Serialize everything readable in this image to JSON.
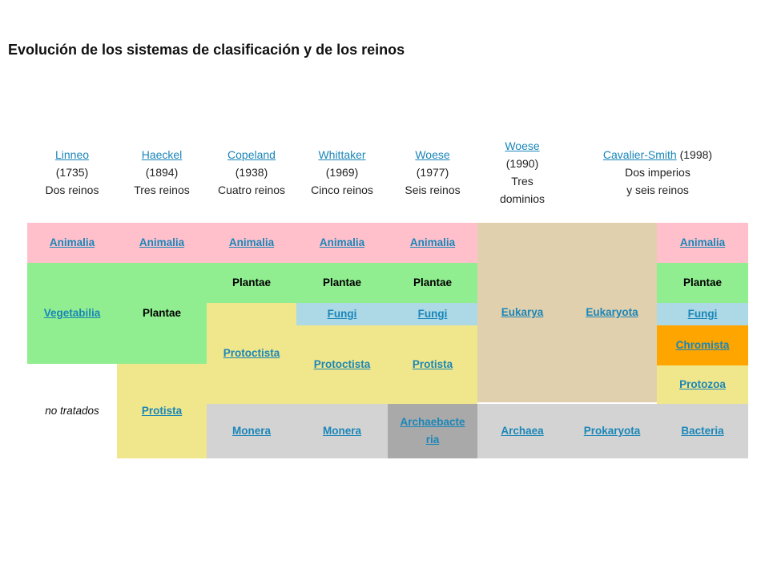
{
  "title": "Evolución de los sistemas de clasificación y de los reinos",
  "headers": [
    {
      "author": "Linneo",
      "year": "(1735)",
      "desc": "Dos reinos"
    },
    {
      "author": "Haeckel",
      "year": "(1894)",
      "desc": "Tres reinos"
    },
    {
      "author": "Copeland",
      "year": "(1938)",
      "desc": "Cuatro reinos"
    },
    {
      "author": "Whittaker",
      "year": "(1969)",
      "desc": "Cinco reinos"
    },
    {
      "author": "Woese",
      "year": "(1977)",
      "desc": "Seis reinos"
    },
    {
      "author": "Woese",
      "year": "(1990)",
      "desc1": "Tres",
      "desc2": "dominios"
    },
    {
      "author": "Cavalier-Smith",
      "year": "(1998)",
      "desc1": "Dos imperios",
      "desc2": "y seis reinos"
    }
  ],
  "cells": {
    "animalia_1": "Animalia",
    "animalia_2": "Animalia",
    "animalia_3": "Animalia",
    "animalia_4": "Animalia",
    "animalia_5": "Animalia",
    "animalia_8": "Animalia",
    "vegetabilia": "Vegetabilia",
    "plantae_2": "Plantae",
    "plantae_3": "Plantae",
    "plantae_4": "Plantae",
    "plantae_5": "Plantae",
    "plantae_8": "Plantae",
    "eukarya": "Eukarya",
    "eukaryota": "Eukaryota",
    "fungi_4": "Fungi",
    "fungi_5": "Fungi",
    "fungi_8": "Fungi",
    "protoctista_3": "Protoctista",
    "protoctista_4": "Protoctista",
    "protista_5": "Protista",
    "chromista": "Chromista",
    "protozoa": "Protozoa",
    "no_tratados": "no tratados",
    "protista_2": "Protista",
    "monera_3": "Monera",
    "monera_4": "Monera",
    "archaebacteria_1": "Archaebacte",
    "archaebacteria_2": "ria",
    "archaea": "Archaea",
    "prokaryota": "Prokaryota",
    "bacteria": "Bacteria"
  },
  "colors": {
    "pink": "#ffc0cb",
    "green": "#90ee90",
    "tan": "#e0d0ae",
    "blue": "#add8e6",
    "yellow": "#f0e68c",
    "orange": "#ffa500",
    "light_gray": "#d3d3d3",
    "dark_gray": "#a9a9a9",
    "link": "#1a86b8"
  }
}
